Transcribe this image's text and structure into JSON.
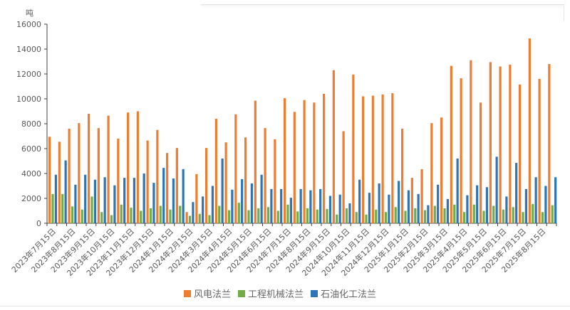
{
  "chart_data": {
    "type": "bar",
    "title": "",
    "ylabel": "吨",
    "xlabel": "",
    "ylim": [
      0,
      16000
    ],
    "yticks": [
      0,
      2000,
      4000,
      6000,
      8000,
      10000,
      12000,
      14000,
      16000
    ],
    "grid": false,
    "legend_position": "bottom",
    "x_tick_labels": [
      "2023年7月15日",
      "2023年8月15日",
      "2023年9月15日",
      "2023年10月15日",
      "2023年11月15日",
      "2023年12月15日",
      "2024年1月15日",
      "2024年2月15日",
      "2024年3月15日",
      "2024年4月15日",
      "2024年5月15日",
      "2024年6月15日",
      "2024年7月15日",
      "2024年8月15日",
      "2024年9月15日",
      "2024年10月15日",
      "2024年11月15日",
      "2024年12月15日",
      "2025年1月15日",
      "2025年2月15日",
      "2025年3月15日",
      "2025年4月15日",
      "2025年5月15日",
      "2025年6月15日",
      "2025年7月15日",
      "2025年8月15日"
    ],
    "series": [
      {
        "name": "风电法兰",
        "color": "#ED7D31",
        "values": [
          6950,
          6550,
          7600,
          8050,
          8800,
          7650,
          8650,
          6800,
          8900,
          9000,
          6650,
          7500,
          5650,
          6050,
          900,
          3950,
          6050,
          8400,
          6500,
          8750,
          6900,
          9850,
          7650,
          6750,
          10050,
          8950,
          9900,
          9700,
          10400,
          12300,
          7400,
          11950,
          10200,
          10250,
          10350,
          10450,
          7600,
          3650,
          4350,
          8050,
          8500,
          12650,
          11650,
          13100,
          9700,
          12950,
          12600,
          12750,
          11150,
          14850,
          11600,
          12800
        ]
      },
      {
        "name": "工程机械法兰",
        "color": "#70AD47",
        "values": [
          2350,
          2350,
          1350,
          1100,
          2150,
          900,
          650,
          1500,
          1250,
          1000,
          1200,
          1400,
          1100,
          1400,
          600,
          750,
          650,
          1400,
          1050,
          1650,
          1050,
          1200,
          1300,
          1000,
          1500,
          950,
          1200,
          1100,
          1150,
          700,
          1200,
          900,
          700,
          1100,
          900,
          1300,
          1000,
          1200,
          1050,
          1400,
          1200,
          1500,
          900,
          1500,
          1000,
          1400,
          1100,
          1300,
          900,
          1550,
          900,
          1450
        ]
      },
      {
        "name": "石油化工法兰",
        "color": "#2E75B6",
        "values": [
          3900,
          5050,
          3100,
          3900,
          3500,
          3700,
          3050,
          3650,
          3650,
          4000,
          3250,
          4450,
          3600,
          4350,
          1700,
          2150,
          3000,
          5200,
          2700,
          3550,
          3200,
          3900,
          2750,
          2750,
          2050,
          2750,
          2650,
          2750,
          2200,
          2300,
          1600,
          3500,
          2450,
          3200,
          2300,
          3400,
          2650,
          2350,
          1450,
          3100,
          1950,
          5200,
          2250,
          3050,
          2900,
          5350,
          2150,
          4850,
          2750,
          3700,
          3000,
          3700
        ]
      }
    ]
  },
  "legend": {
    "items": [
      {
        "label": "风电法兰",
        "color": "#ED7D31"
      },
      {
        "label": "工程机械法兰",
        "color": "#70AD47"
      },
      {
        "label": "石油化工法兰",
        "color": "#2E75B6"
      }
    ]
  },
  "axis": {
    "unit_label": "吨"
  }
}
